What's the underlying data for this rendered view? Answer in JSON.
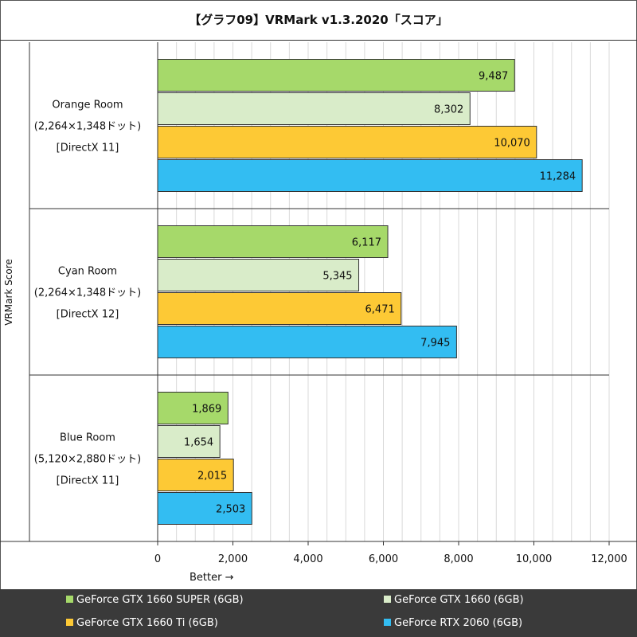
{
  "chart_data": {
    "type": "bar",
    "orientation": "horizontal",
    "title": "【グラフ09】VRMark v1.3.2020「スコア」",
    "ylabel": "VRMark Score",
    "xlabel": "Better →",
    "xlim": [
      0,
      12000
    ],
    "xticks": [
      "0",
      "2,000",
      "4,000",
      "6,000",
      "8,000",
      "10,000",
      "12,000"
    ],
    "grid": true,
    "legend_position": "bottom",
    "categories": [
      {
        "lines": [
          "Orange Room",
          "(2,264×1,348ドット)",
          "[DirectX 11]"
        ]
      },
      {
        "lines": [
          "Cyan Room",
          "(2,264×1,348ドット)",
          "[DirectX 12]"
        ]
      },
      {
        "lines": [
          "Blue Room",
          "(5,120×2,880ドット)",
          "[DirectX 11]"
        ]
      }
    ],
    "series": [
      {
        "name": "GeForce GTX 1660 SUPER (6GB)",
        "color": "#a6d96a",
        "values": [
          9487,
          6117,
          1869
        ],
        "labels": [
          "9,487",
          "6,117",
          "1,869"
        ]
      },
      {
        "name": "GeForce GTX 1660 (6GB)",
        "color": "#d9ecc9",
        "values": [
          8302,
          5345,
          1654
        ],
        "labels": [
          "8,302",
          "5,345",
          "1,654"
        ]
      },
      {
        "name": "GeForce GTX 1660 Ti (6GB)",
        "color": "#fdc935",
        "values": [
          10070,
          6471,
          2015
        ],
        "labels": [
          "10,070",
          "6,471",
          "2,015"
        ]
      },
      {
        "name": "GeForce RTX 2060 (6GB)",
        "color": "#33bdf2",
        "values": [
          11284,
          7945,
          2503
        ],
        "labels": [
          "11,284",
          "7,945",
          "2,503"
        ]
      }
    ]
  }
}
